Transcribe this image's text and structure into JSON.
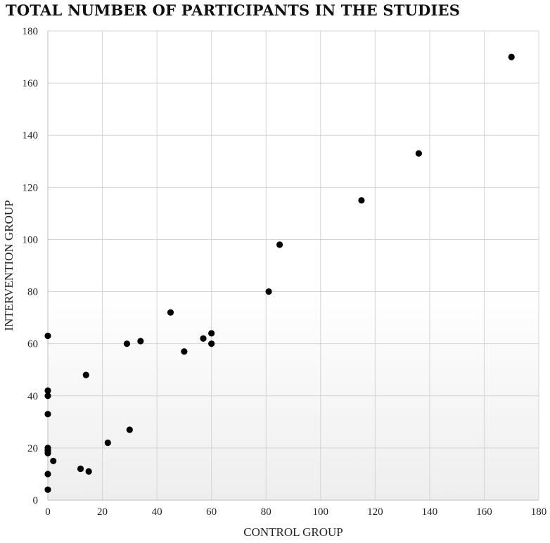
{
  "chart_data": {
    "type": "scatter",
    "title": "TOTAL NUMBER OF PARTICIPANTS IN THE STUDIES",
    "xlabel": "CONTROL GROUP",
    "ylabel": "INTERVENTION GROUP",
    "xlim": [
      0,
      180
    ],
    "ylim": [
      0,
      180
    ],
    "xticks": [
      0,
      20,
      40,
      60,
      80,
      100,
      120,
      140,
      160,
      180
    ],
    "yticks": [
      0,
      20,
      40,
      60,
      80,
      100,
      120,
      140,
      160,
      180
    ],
    "grid": true,
    "marker_color": "#000000",
    "points": [
      {
        "x": 170,
        "y": 170
      },
      {
        "x": 136,
        "y": 133
      },
      {
        "x": 115,
        "y": 115
      },
      {
        "x": 85,
        "y": 98
      },
      {
        "x": 81,
        "y": 80
      },
      {
        "x": 45,
        "y": 72
      },
      {
        "x": 60,
        "y": 64
      },
      {
        "x": 57,
        "y": 62
      },
      {
        "x": 60,
        "y": 60
      },
      {
        "x": 34,
        "y": 61
      },
      {
        "x": 29,
        "y": 60
      },
      {
        "x": 50,
        "y": 57
      },
      {
        "x": 0,
        "y": 63
      },
      {
        "x": 14,
        "y": 48
      },
      {
        "x": 0,
        "y": 42
      },
      {
        "x": 0,
        "y": 40
      },
      {
        "x": 0,
        "y": 33
      },
      {
        "x": 30,
        "y": 27
      },
      {
        "x": 22,
        "y": 22
      },
      {
        "x": 0,
        "y": 20
      },
      {
        "x": 0,
        "y": 19
      },
      {
        "x": 0,
        "y": 18
      },
      {
        "x": 2,
        "y": 15
      },
      {
        "x": 12,
        "y": 12
      },
      {
        "x": 15,
        "y": 11
      },
      {
        "x": 0,
        "y": 10
      },
      {
        "x": 0,
        "y": 4
      }
    ]
  }
}
